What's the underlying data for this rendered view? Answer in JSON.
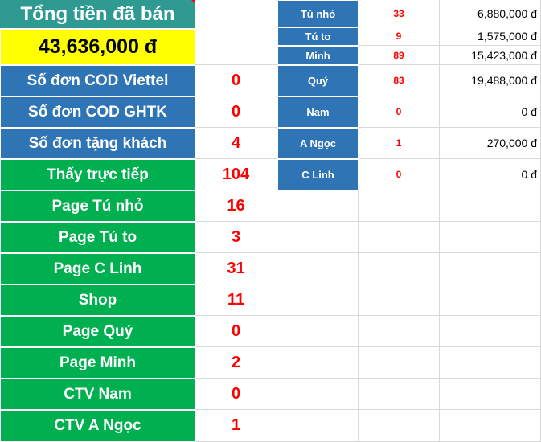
{
  "summary": {
    "title": "Tổng tiền đã bán",
    "total": "43,636,000 đ"
  },
  "stats": [
    {
      "label": "Số đơn COD Viettel",
      "value": "0"
    },
    {
      "label": "Số đơn COD GHTK",
      "value": "0"
    },
    {
      "label": "Số đơn tặng khách",
      "value": "4"
    },
    {
      "label": "Thấy trực tiếp",
      "value": "104"
    },
    {
      "label": "Page Tú nhỏ",
      "value": "16"
    },
    {
      "label": "Page Tú to",
      "value": "3"
    },
    {
      "label": "Page C Linh",
      "value": "31"
    },
    {
      "label": "Shop",
      "value": "11"
    },
    {
      "label": "Page Quý",
      "value": "0"
    },
    {
      "label": "Page Minh",
      "value": "2"
    },
    {
      "label": "CTV Nam",
      "value": "0"
    },
    {
      "label": "CTV A Ngọc",
      "value": "1"
    }
  ],
  "sellers": [
    {
      "name": "Tú nhỏ",
      "count": "33",
      "amount": "6,880,000 đ"
    },
    {
      "name": "Tú to",
      "count": "9",
      "amount": "1,575,000 đ"
    },
    {
      "name": "Minh",
      "count": "89",
      "amount": "15,423,000 đ"
    },
    {
      "name": "Quý",
      "count": "83",
      "amount": "19,488,000 đ"
    },
    {
      "name": "Nam",
      "count": "0",
      "amount": "0 đ"
    },
    {
      "name": "A Ngọc",
      "count": "1",
      "amount": "270,000 đ"
    },
    {
      "name": "C Linh",
      "count": "0",
      "amount": "0 đ"
    }
  ],
  "colors": {
    "header_teal": "#2e9a92",
    "total_yellow": "#ffff00",
    "label_blue": "#2f75b5",
    "label_green": "#00b050",
    "value_red": "#ff0000"
  }
}
